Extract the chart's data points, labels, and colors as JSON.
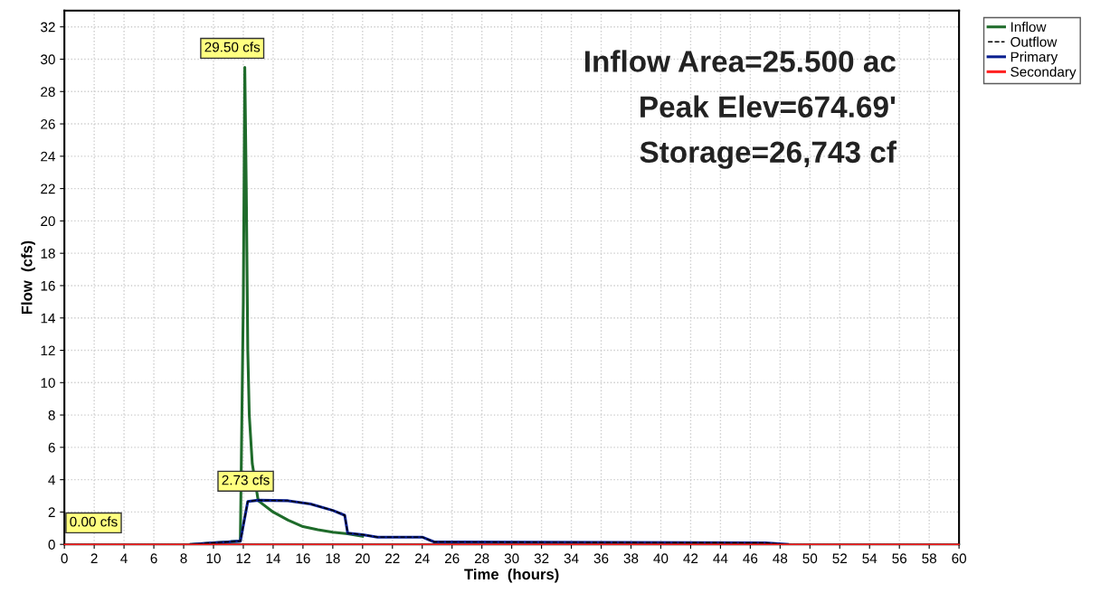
{
  "chart_data": {
    "type": "line",
    "xlabel": "Time  (hours)",
    "ylabel": "Flow  (cfs)",
    "xlim": [
      0,
      60
    ],
    "xticks": [
      0,
      2,
      4,
      6,
      8,
      10,
      12,
      14,
      16,
      18,
      20,
      22,
      24,
      26,
      28,
      30,
      32,
      34,
      36,
      38,
      40,
      42,
      44,
      46,
      48,
      50,
      52,
      54,
      56,
      58,
      60
    ],
    "ylim": [
      0,
      33
    ],
    "yticks": [
      0,
      2,
      4,
      6,
      8,
      10,
      12,
      14,
      16,
      18,
      20,
      22,
      24,
      26,
      28,
      30,
      32
    ],
    "grid": true,
    "legend": "top right",
    "line_style": "solid",
    "marker": "none",
    "series": [
      {
        "name": "Inflow",
        "color": "#1e6b2a",
        "x": [
          8.5,
          10,
          11.8,
          12.0,
          12.1,
          12.2,
          12.3,
          12.4,
          12.6,
          13,
          14,
          15,
          16,
          17,
          18,
          19,
          20
        ],
        "values": [
          0,
          0.1,
          0.2,
          15,
          29.5,
          22,
          12,
          8,
          5,
          2.7,
          2.0,
          1.5,
          1.1,
          0.9,
          0.75,
          0.65,
          0.5
        ]
      },
      {
        "name": "Outflow",
        "color": "#000000",
        "line_style": "dashed",
        "x": [
          8.5,
          10,
          11.8,
          12.3,
          13,
          15,
          16.5,
          18,
          18.8,
          19.0,
          20,
          21,
          24,
          24.8,
          47,
          48.5
        ],
        "values": [
          0,
          0.1,
          0.2,
          2.65,
          2.73,
          2.7,
          2.5,
          2.1,
          1.8,
          0.7,
          0.6,
          0.45,
          0.45,
          0.15,
          0.1,
          0
        ]
      },
      {
        "name": "Primary",
        "color": "#0a1f8f",
        "x": [
          8.5,
          10,
          11.8,
          12.3,
          13,
          15,
          16.5,
          18,
          18.8,
          19.0,
          20,
          21,
          24,
          24.8,
          47,
          48.5
        ],
        "values": [
          0,
          0.1,
          0.2,
          2.65,
          2.73,
          2.7,
          2.5,
          2.1,
          1.8,
          0.7,
          0.6,
          0.45,
          0.45,
          0.15,
          0.1,
          0
        ]
      },
      {
        "name": "Secondary",
        "color": "#ff2020",
        "x": [
          0,
          60
        ],
        "values": [
          0,
          0
        ]
      }
    ],
    "annotations": [
      {
        "text": "29.50 cfs",
        "x": 12.1,
        "y": 29.5
      },
      {
        "text": "2.73 cfs",
        "x": 13,
        "y": 2.73
      },
      {
        "text": "0.00 cfs",
        "x": 0,
        "y": 0
      },
      "Inflow Area=25.500 ac",
      "Peak Elev=674.69'",
      "Storage=26,743 cf"
    ]
  }
}
